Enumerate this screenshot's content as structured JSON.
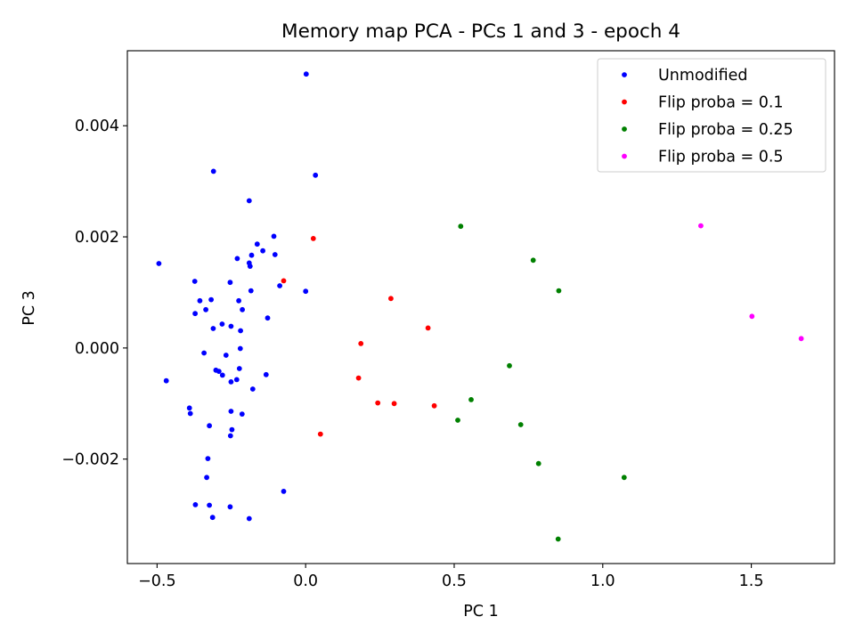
{
  "chart_data": {
    "type": "scatter",
    "title": "Memory map PCA - PCs 1 and 3 - epoch 4",
    "xlabel": "PC 1",
    "ylabel": "PC 3",
    "xlim": [
      -0.6,
      1.78
    ],
    "ylim": [
      -0.00388,
      0.00535
    ],
    "xticks": [
      -0.5,
      0.0,
      0.5,
      1.0,
      1.5
    ],
    "xtick_labels": [
      "−0.5",
      "0.0",
      "0.5",
      "1.0",
      "1.5"
    ],
    "yticks": [
      -0.002,
      0.0,
      0.002,
      0.004
    ],
    "ytick_labels": [
      "−0.002",
      "0.000",
      "0.002",
      "0.004"
    ],
    "grid": false,
    "legend_position": "top-right",
    "series": [
      {
        "name": "Unmodified",
        "color": "#0000ff",
        "points": [
          [
            0.002,
            0.00493
          ],
          [
            -0.31,
            0.00318
          ],
          [
            0.033,
            0.00311
          ],
          [
            -0.19,
            0.00265
          ],
          [
            -0.494,
            0.00152
          ],
          [
            -0.107,
            0.00201
          ],
          [
            -0.163,
            0.00187
          ],
          [
            -0.144,
            0.00175
          ],
          [
            -0.103,
            0.00168
          ],
          [
            -0.182,
            0.00167
          ],
          [
            -0.23,
            0.00161
          ],
          [
            -0.19,
            0.00153
          ],
          [
            -0.187,
            0.00147
          ],
          [
            -0.087,
            0.00112
          ],
          [
            -0.373,
            0.0012
          ],
          [
            -0.254,
            0.00118
          ],
          [
            -0.184,
            0.00103
          ],
          [
            0.0,
            0.00102
          ],
          [
            -0.356,
            0.00085
          ],
          [
            -0.318,
            0.00087
          ],
          [
            -0.225,
            0.00085
          ],
          [
            -0.336,
            0.00069
          ],
          [
            -0.213,
            0.00069
          ],
          [
            -0.372,
            0.00062
          ],
          [
            -0.128,
            0.00054
          ],
          [
            -0.281,
            0.00043
          ],
          [
            -0.251,
            0.00039
          ],
          [
            -0.311,
            0.00035
          ],
          [
            -0.219,
            0.00031
          ],
          [
            -0.22,
            -1e-05
          ],
          [
            -0.342,
            -9e-05
          ],
          [
            -0.268,
            -0.00013
          ],
          [
            -0.223,
            -0.00037
          ],
          [
            -0.302,
            -0.0004
          ],
          [
            -0.292,
            -0.00042
          ],
          [
            -0.28,
            -0.00049
          ],
          [
            -0.133,
            -0.00048
          ],
          [
            -0.232,
            -0.00057
          ],
          [
            -0.251,
            -0.00061
          ],
          [
            -0.469,
            -0.00059
          ],
          [
            -0.178,
            -0.00074
          ],
          [
            -0.391,
            -0.00108
          ],
          [
            -0.388,
            -0.00118
          ],
          [
            -0.251,
            -0.00114
          ],
          [
            -0.214,
            -0.00119
          ],
          [
            -0.324,
            -0.0014
          ],
          [
            -0.248,
            -0.00147
          ],
          [
            -0.253,
            -0.00158
          ],
          [
            -0.329,
            -0.00199
          ],
          [
            -0.074,
            -0.00258
          ],
          [
            -0.333,
            -0.00233
          ],
          [
            -0.371,
            -0.00282
          ],
          [
            -0.324,
            -0.00283
          ],
          [
            -0.254,
            -0.00286
          ],
          [
            -0.313,
            -0.00305
          ],
          [
            -0.19,
            -0.00307
          ]
        ]
      },
      {
        "name": "Flip proba = 0.1",
        "color": "#ff0000",
        "points": [
          [
            0.026,
            0.00197
          ],
          [
            -0.074,
            0.00121
          ],
          [
            0.287,
            0.00089
          ],
          [
            0.412,
            0.00036
          ],
          [
            0.186,
            8e-05
          ],
          [
            0.178,
            -0.00054
          ],
          [
            0.243,
            -0.00099
          ],
          [
            0.298,
            -0.001
          ],
          [
            0.433,
            -0.00104
          ],
          [
            0.05,
            -0.00155
          ]
        ]
      },
      {
        "name": "Flip proba = 0.25",
        "color": "#008000",
        "points": [
          [
            0.522,
            0.00219
          ],
          [
            0.766,
            0.00158
          ],
          [
            0.852,
            0.00103
          ],
          [
            0.686,
            -0.00032
          ],
          [
            0.557,
            -0.00093
          ],
          [
            0.512,
            -0.0013
          ],
          [
            0.724,
            -0.00138
          ],
          [
            0.784,
            -0.00208
          ],
          [
            1.072,
            -0.00233
          ],
          [
            0.85,
            -0.00344
          ]
        ]
      },
      {
        "name": "Flip proba = 0.5",
        "color": "#ff00ff",
        "points": [
          [
            1.33,
            0.0022
          ],
          [
            1.502,
            0.00057
          ],
          [
            1.668,
            0.00017
          ]
        ]
      }
    ]
  }
}
